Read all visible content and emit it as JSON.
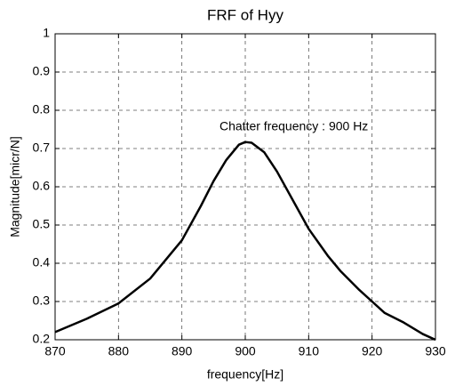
{
  "chart_data": {
    "type": "line",
    "title": "FRF of Hyy",
    "xlabel": "frequency[Hz]",
    "ylabel": "Magnitude[micr/N]",
    "annotation": "Chatter frequency : 900 Hz",
    "x": [
      870,
      875,
      880,
      885,
      890,
      893,
      895,
      897,
      899,
      900,
      901,
      903,
      905,
      908,
      910,
      913,
      915,
      918,
      920,
      922,
      925,
      928,
      930
    ],
    "values": [
      0.22,
      0.255,
      0.295,
      0.36,
      0.46,
      0.55,
      0.615,
      0.67,
      0.71,
      0.717,
      0.715,
      0.69,
      0.64,
      0.55,
      0.49,
      0.42,
      0.38,
      0.33,
      0.3,
      0.27,
      0.245,
      0.215,
      0.2
    ],
    "color": "#000000",
    "xlim": [
      870,
      930
    ],
    "xticks": [
      870,
      880,
      890,
      900,
      910,
      920,
      930
    ],
    "ylim": [
      0.2,
      1
    ],
    "yticks": [
      0.2,
      0.3,
      0.4,
      0.5,
      0.6,
      0.7,
      0.8,
      0.9,
      1
    ],
    "grid": true
  }
}
